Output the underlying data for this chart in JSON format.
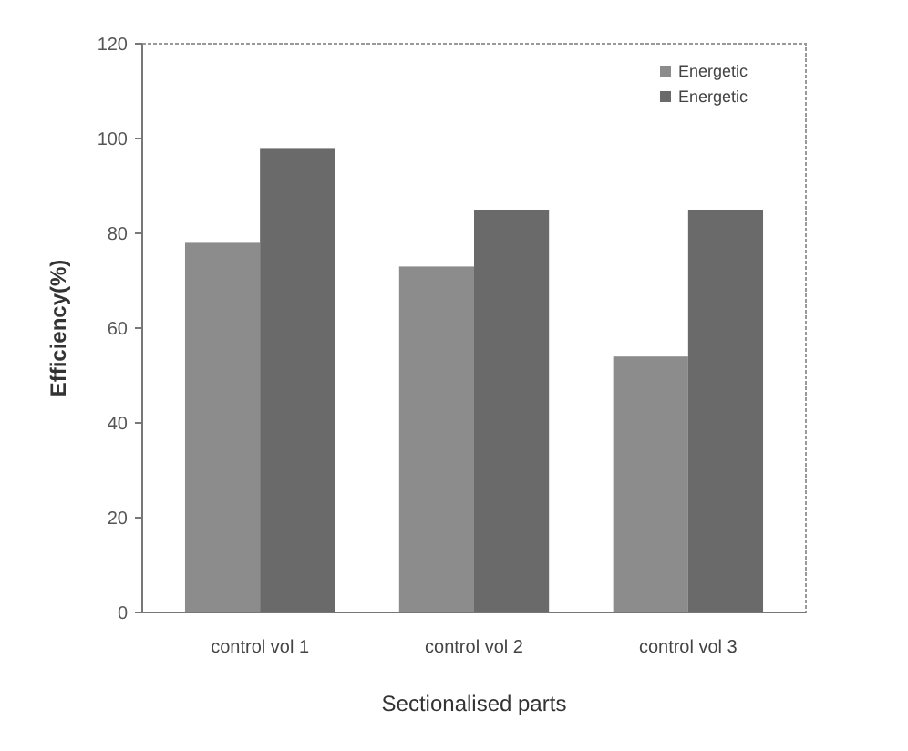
{
  "chart_data": {
    "type": "bar",
    "xlabel": "Sectionalised parts",
    "ylabel": "Efficiency(%)",
    "categories": [
      "control vol 1",
      "control vol 2",
      "control vol 3"
    ],
    "series": [
      {
        "name": "Energetic",
        "color": "#8c8c8c",
        "values": [
          78,
          73,
          54
        ]
      },
      {
        "name": "Energetic",
        "color": "#6a6a6a",
        "values": [
          98,
          85,
          85
        ]
      }
    ],
    "ylim": [
      0,
      120
    ],
    "yticks": [
      0,
      20,
      40,
      60,
      80,
      100,
      120
    ],
    "grid": false,
    "legend": "top right"
  }
}
